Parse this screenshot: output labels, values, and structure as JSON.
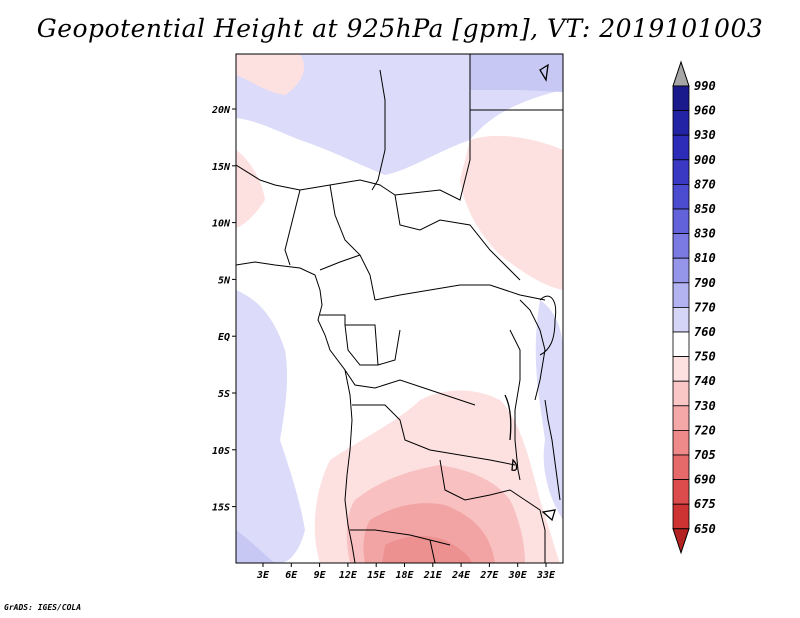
{
  "title": "Geopotential Height at 925hPa [gpm], VT: 2019101003",
  "credit": "GrADS: IGES/COLA",
  "map": {
    "lon_labels": [
      "3E",
      "6E",
      "9E",
      "12E",
      "15E",
      "18E",
      "21E",
      "24E",
      "27E",
      "30E",
      "33E"
    ],
    "lat_labels": [
      "20N",
      "15N",
      "10N",
      "5N",
      "EQ",
      "5S",
      "10S",
      "15S"
    ]
  },
  "colorbar": {
    "levels": [
      "990",
      "960",
      "930",
      "900",
      "870",
      "850",
      "830",
      "810",
      "790",
      "770",
      "760",
      "750",
      "740",
      "730",
      "720",
      "705",
      "690",
      "675",
      "650"
    ],
    "colors": [
      "#1a1a8c",
      "#2323a6",
      "#2c2cb8",
      "#3939c4",
      "#4c4cd0",
      "#6262da",
      "#7a7ae2",
      "#9595ea",
      "#b3b3f2",
      "#d5d5f8",
      "#ffffff",
      "#fde0e0",
      "#fac6c6",
      "#f5a8a8",
      "#ef8a8a",
      "#e66a6a",
      "#dc4c4c",
      "#cd3333",
      "#b52222"
    ],
    "top_arrow_color": "#a6a6a6",
    "bottom_arrow_color": "#b52222"
  }
}
